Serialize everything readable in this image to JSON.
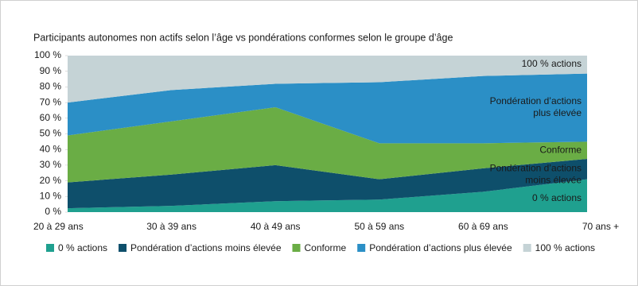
{
  "chart_data": {
    "type": "stacked-area",
    "title": "Participants autonomes non actifs selon l’âge vs pondérations conformes selon le groupe d’âge",
    "categories": [
      "20 à 29 ans",
      "30 à 39 ans",
      "40 à 49 ans",
      "50 à 59 ans",
      "60 à 69 ans",
      "70 ans +"
    ],
    "series": [
      {
        "name": "0 % actions",
        "color": "#1fa08f",
        "values": [
          2.5,
          4,
          7,
          8,
          13,
          21
        ]
      },
      {
        "name": "Pondération d’actions moins élevée",
        "color": "#0e4f6b",
        "values": [
          16.5,
          20,
          23,
          13,
          15,
          13
        ]
      },
      {
        "name": "Conforme",
        "color": "#6aad45",
        "values": [
          30,
          34,
          37,
          23,
          16,
          11
        ]
      },
      {
        "name": "Pondération d’actions plus élevée",
        "color": "#2b8fc6",
        "values": [
          21,
          20,
          15,
          39,
          43,
          43.5
        ]
      },
      {
        "name": "100 % actions",
        "color": "#c5d3d6",
        "values": [
          30,
          22,
          18,
          17,
          13,
          11.5
        ]
      }
    ],
    "annotations": [
      [
        "100 % actions"
      ],
      [
        "Pondération d’actions",
        "plus élevée"
      ],
      [
        "Conforme"
      ],
      [
        "Pondération d’actions",
        "moins élevée"
      ],
      [
        "0 % actions"
      ]
    ],
    "ylim": [
      0,
      100
    ],
    "yticks": [
      {
        "value": 0,
        "label": "0 %"
      },
      {
        "value": 10,
        "label": "10 %"
      },
      {
        "value": 20,
        "label": "20 %"
      },
      {
        "value": 30,
        "label": "30 %"
      },
      {
        "value": 40,
        "label": "40 %"
      },
      {
        "value": 50,
        "label": "50 %"
      },
      {
        "value": 60,
        "label": "60 %"
      },
      {
        "value": 70,
        "label": "70 %"
      },
      {
        "value": 80,
        "label": "80 %"
      },
      {
        "value": 90,
        "label": "90 %"
      },
      {
        "value": 100,
        "label": "100 %"
      }
    ]
  }
}
